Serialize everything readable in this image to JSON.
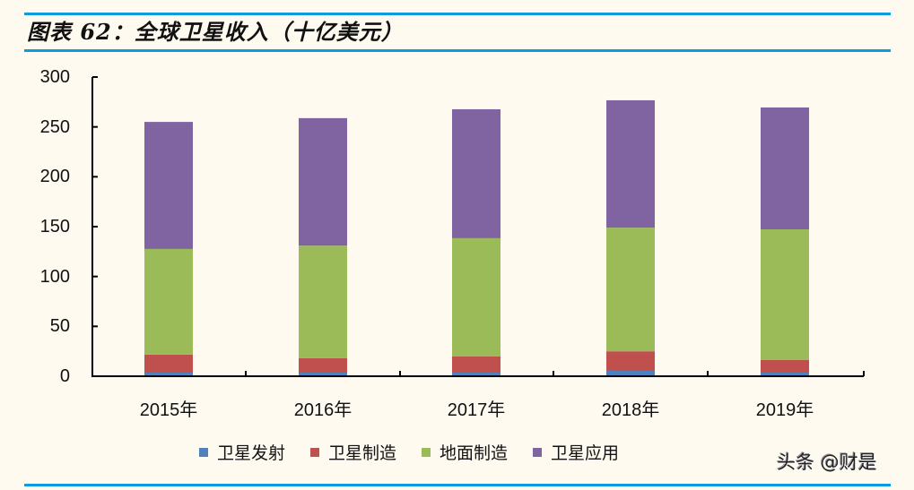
{
  "header": {
    "title": "图表 62：全球卫星收入（十亿美元）"
  },
  "watermark": "头条 @财是",
  "colors": {
    "rule": "#0a9be0",
    "background": "#fefaf0",
    "series": [
      "#4f81bd",
      "#c0504d",
      "#9bbb59",
      "#8064a2"
    ]
  },
  "chart_data": {
    "type": "bar",
    "stacked": true,
    "title": "全球卫星收入（十亿美元）",
    "xlabel": "",
    "ylabel": "",
    "ylim": [
      0,
      300
    ],
    "yticks": [
      0,
      50,
      100,
      150,
      200,
      250,
      300
    ],
    "categories": [
      "2015年",
      "2016年",
      "2017年",
      "2018年",
      "2019年"
    ],
    "series": [
      {
        "name": "卫星发射",
        "color": "#4f81bd",
        "values": [
          3.6,
          3.6,
          3.6,
          5.4,
          3.6
        ]
      },
      {
        "name": "卫星制造",
        "color": "#c0504d",
        "values": [
          18.0,
          14.4,
          16.2,
          19.6,
          12.6
        ]
      },
      {
        "name": "地面制造",
        "color": "#9bbb59",
        "values": [
          106.0,
          113.0,
          118.6,
          124.0,
          131.1
        ]
      },
      {
        "name": "卫星应用",
        "color": "#8064a2",
        "values": [
          127.4,
          127.8,
          129.3,
          127.7,
          122.2
        ]
      }
    ],
    "grid": false,
    "legend_position": "bottom"
  }
}
